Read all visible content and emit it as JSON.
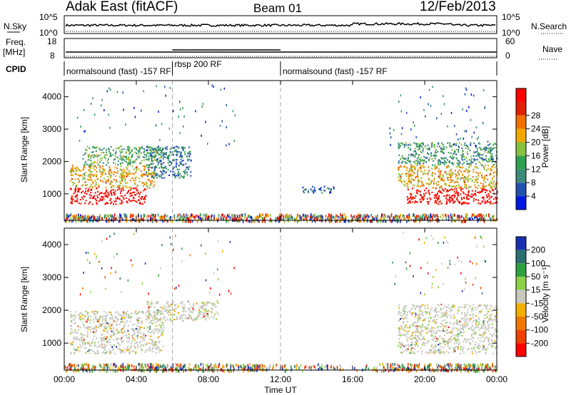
{
  "header": {
    "station": "Adak East (fitACF)",
    "beam": "Beam 01",
    "date": "12/Feb/2013"
  },
  "ancillary": {
    "nsky_label": "N.Sky",
    "nsearch_label": "N.Search",
    "freq_label_line1": "Freq.",
    "freq_label_line2": "[MHz]",
    "nave_label": "Nave",
    "cpid_label": "CPID",
    "nsky_ticks": [
      "10^5",
      "10^0"
    ],
    "freq_ticks": [
      "18",
      "8"
    ],
    "nave_ticks": [
      "60",
      "0"
    ],
    "cpid_segments": [
      {
        "start_h": 0,
        "end_h": 6,
        "label": "normalsound (fast) -157 RF"
      },
      {
        "start_h": 6,
        "end_h": 12,
        "label": "rbsp 200 RF"
      },
      {
        "start_h": 12,
        "end_h": 24,
        "label": "normalsound (fast) -157 RF"
      }
    ]
  },
  "chart_data": [
    {
      "type": "heatmap",
      "name": "power",
      "xlabel": "Time UT",
      "ylabel": "Slant Range [km]",
      "xlim": [
        0,
        24
      ],
      "ylim": [
        180,
        4500
      ],
      "xticks": [
        "00:00",
        "04:00",
        "08:00",
        "12:00",
        "16:00",
        "20:00",
        "00:00"
      ],
      "yticks": [
        1000,
        2000,
        3000,
        4000
      ],
      "colorbar": {
        "label": "Power [dB]",
        "ticks": [
          4,
          8,
          12,
          16,
          20,
          24,
          28
        ],
        "colors": [
          "#0018e0",
          "#2050b0",
          "#3c8a7a",
          "#2fa050",
          "#88c040",
          "#f0a800",
          "#f07000",
          "#e02000",
          "#ff0000"
        ]
      },
      "regions": [
        {
          "t": [
            0.3,
            4.5
          ],
          "r": [
            700,
            1200
          ],
          "db": 28
        },
        {
          "t": [
            0.3,
            5.0
          ],
          "r": [
            1200,
            1900
          ],
          "db": 18
        },
        {
          "t": [
            1.0,
            5.5
          ],
          "r": [
            1900,
            2500
          ],
          "db": 12
        },
        {
          "t": [
            4.5,
            7.0
          ],
          "r": [
            1500,
            2500
          ],
          "db": 8
        },
        {
          "t": [
            13.2,
            15.0
          ],
          "r": [
            1050,
            1250
          ],
          "db": 6
        },
        {
          "t": [
            19.0,
            24.0
          ],
          "r": [
            700,
            1200
          ],
          "db": 28
        },
        {
          "t": [
            18.5,
            24.0
          ],
          "r": [
            1200,
            1900
          ],
          "db": 18
        },
        {
          "t": [
            18.5,
            24.0
          ],
          "r": [
            1900,
            2600
          ],
          "db": 10
        }
      ]
    },
    {
      "type": "heatmap",
      "name": "velocity",
      "xlabel": "Time UT",
      "ylabel": "Slant Range [km]",
      "xlim": [
        0,
        24
      ],
      "ylim": [
        180,
        4500
      ],
      "xticks": [
        "00:00",
        "04:00",
        "08:00",
        "12:00",
        "16:00",
        "20:00",
        "00:00"
      ],
      "yticks": [
        1000,
        2000,
        3000,
        4000
      ],
      "colorbar": {
        "label": "Velocity [m s⁻¹]",
        "ticks": [
          200,
          100,
          50,
          15,
          -15,
          -50,
          -100,
          -200
        ],
        "colors": [
          "#1a30b0",
          "#2a6e70",
          "#2fa040",
          "#8cd048",
          "#c8c8c0",
          "#f0b000",
          "#f07800",
          "#f04000",
          "#ff0000"
        ]
      },
      "regions": [
        {
          "t": [
            0.3,
            5.5
          ],
          "r": [
            700,
            2000
          ],
          "v": 0
        },
        {
          "t": [
            4.5,
            8.5
          ],
          "r": [
            1700,
            2300
          ],
          "v": 0
        },
        {
          "t": [
            18.5,
            24.0
          ],
          "r": [
            700,
            2200
          ],
          "v": 0
        }
      ]
    }
  ]
}
